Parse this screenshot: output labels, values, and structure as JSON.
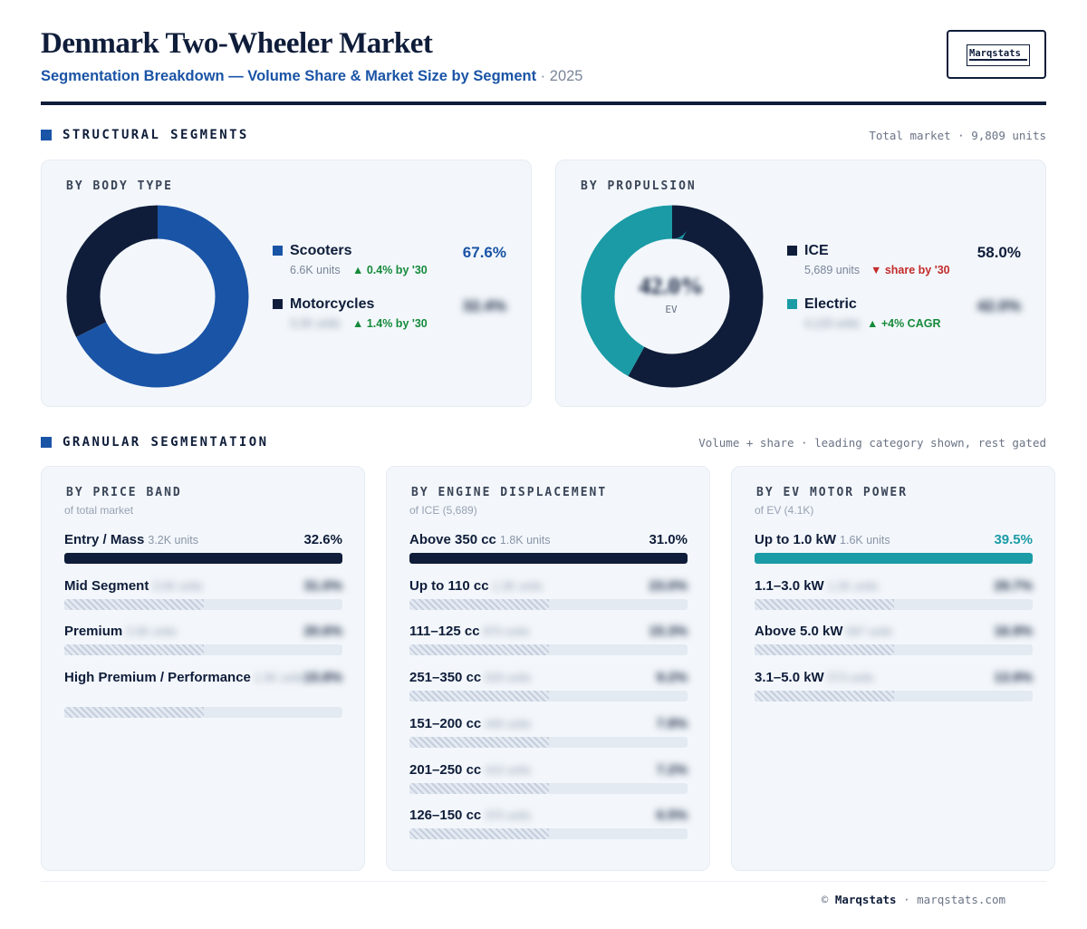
{
  "header": {
    "title": "Denmark Two-Wheeler Market",
    "subtitle": "Segmentation Breakdown — Volume Share & Market Size by Segment",
    "separator": "·",
    "year": "2025",
    "logo_text": "Marqstats"
  },
  "structural": {
    "title": "STRUCTURAL SEGMENTS",
    "note": "Total market · 9,809 units",
    "body_type": {
      "title": "BY BODY TYPE",
      "items": [
        {
          "name": "Scooters",
          "units": "6.6K units",
          "trend": "▲ 0.4% by '30",
          "pct": "67.6%",
          "share": 67.6,
          "color": "#1a54a6"
        },
        {
          "name": "Motorcycles",
          "units": "3.2K units",
          "trend": "▲ 1.4% by '30",
          "pct": "32.4%",
          "share": 32.4,
          "color": "#0f1d3a"
        }
      ]
    },
    "propulsion": {
      "title": "BY PROPULSION",
      "center_value": "42.0%",
      "center_label": "EV",
      "items": [
        {
          "name": "ICE",
          "units": "5,689 units",
          "trend": "▼ share by '30",
          "pct": "58.0%",
          "share": 58.0,
          "color": "#0f1d3a"
        },
        {
          "name": "Electric",
          "units": "4,120 units",
          "trend": "▲ +4% CAGR",
          "pct": "42.0%",
          "share": 42.0,
          "color": "#1a9ba6"
        }
      ]
    }
  },
  "granular": {
    "title": "GRANULAR SEGMENTATION",
    "note": "Volume + share · leading category shown, rest gated",
    "price": {
      "title": "BY PRICE BAND",
      "sub": "of total market",
      "rows": [
        {
          "name": "Entry / Mass",
          "units": "3.2K units",
          "pct": "32.6%",
          "share": 32.6
        },
        {
          "name": "Mid Segment",
          "units": "3.0K units",
          "pct": "31.0%",
          "share": 31.0
        },
        {
          "name": "Premium",
          "units": "2.0K units",
          "pct": "20.6%",
          "share": 20.6
        },
        {
          "name": "High Premium / Performance",
          "units": "1.5K units",
          "pct": "15.8%",
          "share": 15.8
        }
      ]
    },
    "engine": {
      "title": "BY ENGINE DISPLACEMENT",
      "sub": "of ICE (5,689)",
      "rows": [
        {
          "name": "Above 350 cc",
          "units": "1.8K units",
          "pct": "31.0%",
          "share": 31.0
        },
        {
          "name": "Up to 110 cc",
          "units": "1.3K units",
          "pct": "23.0%",
          "share": 23.0
        },
        {
          "name": "111–125 cc",
          "units": "870 units",
          "pct": "15.3%",
          "share": 15.3
        },
        {
          "name": "251–350 cc",
          "units": "520 units",
          "pct": "9.2%",
          "share": 9.2
        },
        {
          "name": "151–200 cc",
          "units": "440 units",
          "pct": "7.8%",
          "share": 7.8
        },
        {
          "name": "201–250 cc",
          "units": "410 units",
          "pct": "7.2%",
          "share": 7.2
        },
        {
          "name": "126–150 cc",
          "units": "370 units",
          "pct": "6.5%",
          "share": 6.5
        }
      ]
    },
    "motor": {
      "title": "BY EV MOTOR POWER",
      "sub": "of EV (4.1K)",
      "rows": [
        {
          "name": "Up to 1.0 kW",
          "units": "1.6K units",
          "pct": "39.5%",
          "share": 39.5
        },
        {
          "name": "1.1–3.0 kW",
          "units": "1.2K units",
          "pct": "29.7%",
          "share": 29.7
        },
        {
          "name": "Above 5.0 kW",
          "units": "697 units",
          "pct": "16.9%",
          "share": 16.9
        },
        {
          "name": "3.1–5.0 kW",
          "units": "573 units",
          "pct": "13.9%",
          "share": 13.9
        }
      ]
    }
  },
  "footer": {
    "copyright": "©",
    "brand": "Marqstats",
    "separator": "·",
    "site": "marqstats.com"
  },
  "colors": {
    "navy": "#0f1d3a",
    "blue": "#1a54a6",
    "teal": "#1a9ba6"
  }
}
